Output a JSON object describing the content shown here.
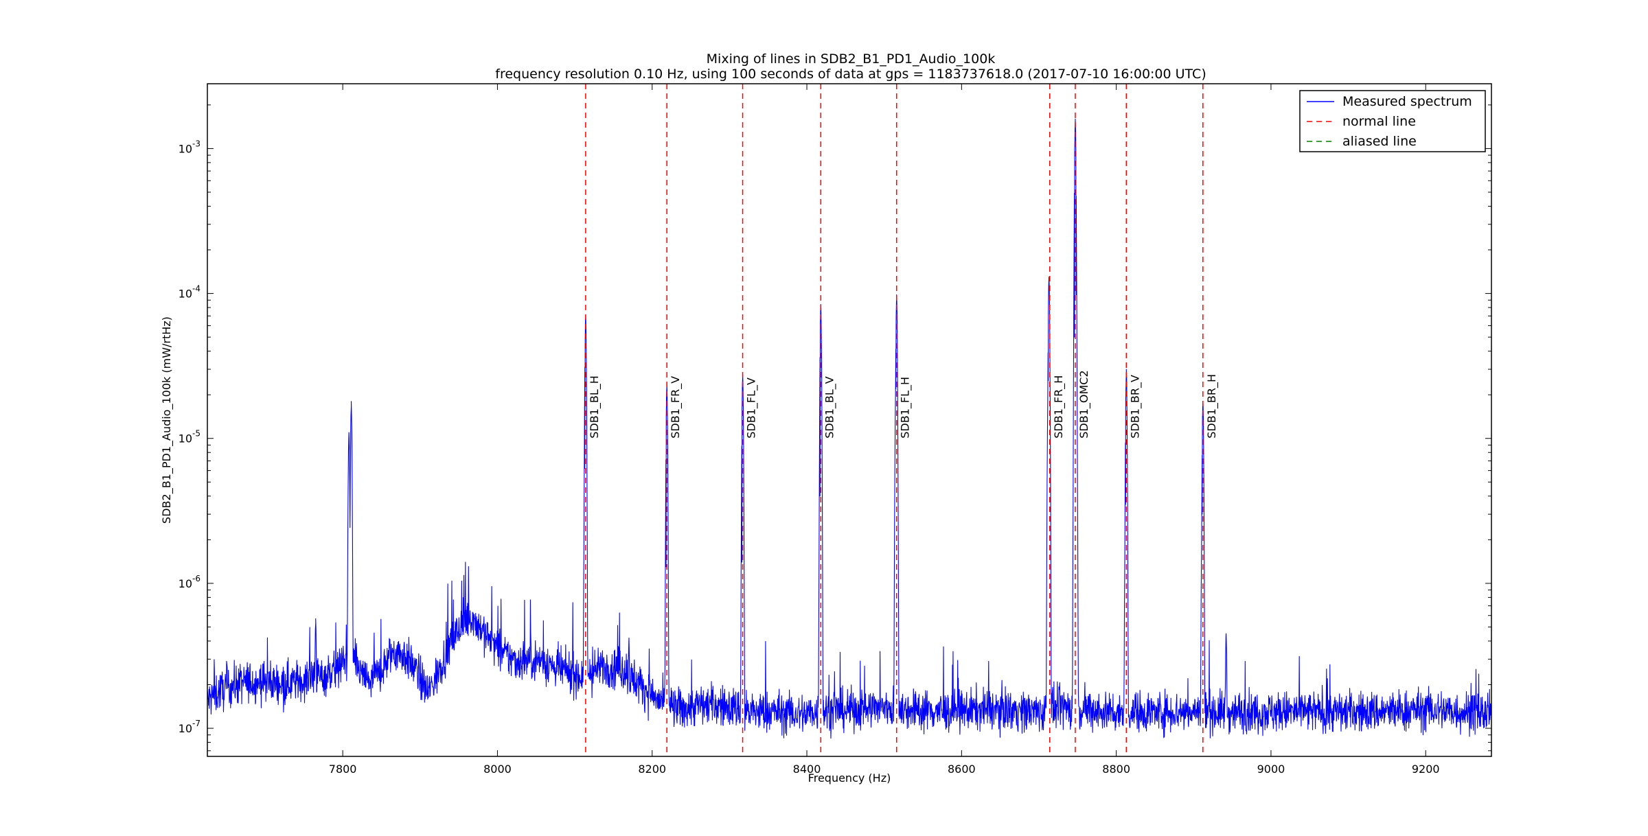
{
  "chart_data": {
    "type": "line",
    "title": "Mixing of lines in SDB2_B1_PD1_Audio_100k",
    "subtitle": "frequency resolution 0.10 Hz, using 100 seconds of data at gps = 1183737618.0 (2017-07-10 16:00:00 UTC)",
    "xlabel": "Frequency (Hz)",
    "ylabel": "SDB2_B1_PD1_Audio_100k (mW/rtHz)",
    "xlim": [
      7625,
      9285
    ],
    "ylim": [
      6.4e-08,
      0.0028
    ],
    "yscale": "log",
    "grid": false,
    "legend_position": "top-right",
    "x_ticks": [
      {
        "value": 7800,
        "label": "7800"
      },
      {
        "value": 8000,
        "label": "8000"
      },
      {
        "value": 8200,
        "label": "8200"
      },
      {
        "value": 8400,
        "label": "8400"
      },
      {
        "value": 8600,
        "label": "8600"
      },
      {
        "value": 8800,
        "label": "8800"
      },
      {
        "value": 9000,
        "label": "9000"
      },
      {
        "value": 9200,
        "label": "9200"
      }
    ],
    "y_ticks": [
      {
        "value": 1e-07,
        "base": "10",
        "exp": "-7"
      },
      {
        "value": 1e-06,
        "base": "10",
        "exp": "-6"
      },
      {
        "value": 1e-05,
        "base": "10",
        "exp": "-5"
      },
      {
        "value": 0.0001,
        "base": "10",
        "exp": "-4"
      },
      {
        "value": 0.001,
        "base": "10",
        "exp": "-3"
      }
    ],
    "legend": [
      {
        "label": "Measured spectrum",
        "color": "#0000ff",
        "style": "solid"
      },
      {
        "label": "normal line",
        "color": "#ff0000",
        "style": "dashed"
      },
      {
        "label": "aliased line",
        "color": "#008000",
        "style": "dashed"
      }
    ],
    "series": [
      {
        "name": "Measured spectrum",
        "color": "#0000ff",
        "baseline_points": [
          [
            7625,
            1.55e-07
          ],
          [
            7640,
            1.8e-07
          ],
          [
            7660,
            2e-07
          ],
          [
            7680,
            2.1e-07
          ],
          [
            7700,
            2.1e-07
          ],
          [
            7720,
            2.05e-07
          ],
          [
            7740,
            2.1e-07
          ],
          [
            7760,
            2.2e-07
          ],
          [
            7780,
            2.35e-07
          ],
          [
            7795,
            2.6e-07
          ],
          [
            7805,
            3e-07
          ],
          [
            7815,
            2.9e-07
          ],
          [
            7825,
            2.3e-07
          ],
          [
            7835,
            2.1e-07
          ],
          [
            7850,
            2.5e-07
          ],
          [
            7865,
            3.4e-07
          ],
          [
            7880,
            3.2e-07
          ],
          [
            7895,
            2.5e-07
          ],
          [
            7910,
            1.75e-07
          ],
          [
            7920,
            2.2e-07
          ],
          [
            7935,
            3.5e-07
          ],
          [
            7950,
            4.8e-07
          ],
          [
            7965,
            6e-07
          ],
          [
            7980,
            4.8e-07
          ],
          [
            7995,
            3.8e-07
          ],
          [
            8010,
            3.2e-07
          ],
          [
            8025,
            2.9e-07
          ],
          [
            8045,
            3e-07
          ],
          [
            8060,
            2.9e-07
          ],
          [
            8075,
            2.6e-07
          ],
          [
            8090,
            2.45e-07
          ],
          [
            8105,
            2.3e-07
          ],
          [
            8120,
            2.4e-07
          ],
          [
            8140,
            2.7e-07
          ],
          [
            8160,
            2.6e-07
          ],
          [
            8175,
            2.2e-07
          ],
          [
            8190,
            1.9e-07
          ],
          [
            8205,
            1.6e-07
          ],
          [
            8220,
            1.4e-07
          ],
          [
            8240,
            1.35e-07
          ],
          [
            8260,
            1.45e-07
          ],
          [
            8280,
            1.45e-07
          ],
          [
            8300,
            1.4e-07
          ],
          [
            8330,
            1.3e-07
          ],
          [
            8360,
            1.3e-07
          ],
          [
            8390,
            1.25e-07
          ],
          [
            8420,
            1.3e-07
          ],
          [
            8460,
            1.35e-07
          ],
          [
            8500,
            1.4e-07
          ],
          [
            8540,
            1.35e-07
          ],
          [
            8580,
            1.3e-07
          ],
          [
            8620,
            1.35e-07
          ],
          [
            8660,
            1.35e-07
          ],
          [
            8700,
            1.3e-07
          ],
          [
            8740,
            1.4e-07
          ],
          [
            8780,
            1.3e-07
          ],
          [
            8820,
            1.3e-07
          ],
          [
            8860,
            1.3e-07
          ],
          [
            8900,
            1.3e-07
          ],
          [
            8950,
            1.3e-07
          ],
          [
            9000,
            1.3e-07
          ],
          [
            9050,
            1.3e-07
          ],
          [
            9100,
            1.3e-07
          ],
          [
            9150,
            1.3e-07
          ],
          [
            9200,
            1.35e-07
          ],
          [
            9250,
            1.3e-07
          ],
          [
            9285,
            1.25e-07
          ]
        ],
        "peaks": [
          {
            "x": 7808,
            "y": 1.1e-05
          },
          {
            "x": 7811,
            "y": 1.8e-05
          },
          {
            "x": 7765,
            "y": 5.7e-07
          },
          {
            "x": 8114,
            "y": 7e-05
          },
          {
            "x": 8113,
            "y": 6.2e-06
          },
          {
            "x": 8219,
            "y": 2.4e-05
          },
          {
            "x": 8218,
            "y": 1.3e-06
          },
          {
            "x": 8317,
            "y": 2.8e-05
          },
          {
            "x": 8316,
            "y": 1.4e-06
          },
          {
            "x": 8418,
            "y": 8.4e-05
          },
          {
            "x": 8417,
            "y": 4e-06
          },
          {
            "x": 8516,
            "y": 9.8e-05
          },
          {
            "x": 8515,
            "y": 2.2e-05
          },
          {
            "x": 8713,
            "y": 0.00013
          },
          {
            "x": 8712,
            "y": 2.5e-05
          },
          {
            "x": 8747,
            "y": 0.0016
          },
          {
            "x": 8748,
            "y": 9.8e-05
          },
          {
            "x": 8746,
            "y": 5e-05
          },
          {
            "x": 8813,
            "y": 3e-05
          },
          {
            "x": 8812,
            "y": 3.5e-06
          },
          {
            "x": 8912,
            "y": 1.8e-05
          },
          {
            "x": 8911,
            "y": 3e-06
          },
          {
            "x": 8170,
            "y": 4.2e-07
          },
          {
            "x": 8942,
            "y": 4.5e-07
          }
        ]
      }
    ],
    "lines": [
      {
        "x": 8114,
        "label": "SDB1_BL_H",
        "kind": "normal"
      },
      {
        "x": 8219,
        "label": "SDB1_FR_V",
        "kind": "normal"
      },
      {
        "x": 8317,
        "label": "SDB1_FL_V",
        "kind": "normal"
      },
      {
        "x": 8418,
        "label": "SDB1_BL_V",
        "kind": "normal"
      },
      {
        "x": 8516,
        "label": "SDB1_FL_H",
        "kind": "normal"
      },
      {
        "x": 8714,
        "label": "SDB1_FR_H",
        "kind": "normal"
      },
      {
        "x": 8747,
        "label": "SDB1_OMC2",
        "kind": "normal"
      },
      {
        "x": 8813,
        "label": "SDB1_BR_V",
        "kind": "normal"
      },
      {
        "x": 8912,
        "label": "SDB1_BR_H",
        "kind": "normal"
      }
    ],
    "line_label_y": 1e-05
  }
}
